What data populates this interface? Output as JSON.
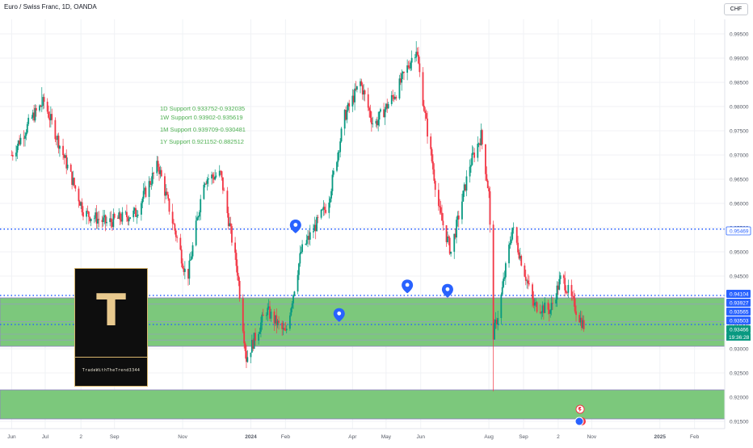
{
  "header": {
    "symbol_title": "Euro / Swiss Franc, 1D, OANDA",
    "currency_label": "CHF"
  },
  "logo": {
    "letter": "T",
    "caption": "TradeWithTheTrend3344"
  },
  "annotations": [
    "1D Support 0.933752-0.932035",
    "1W Support 0.93902-0.935619",
    "1M Support 0.939709-0.930481",
    "1Y Support 0.921152-0.882512"
  ],
  "colors": {
    "up": "#089981",
    "down": "#f23645",
    "zone": "#7cc87c",
    "level_line": "#2962ff",
    "annotation": "#4caf50",
    "axis_text": "#555a65",
    "label_blue": "#2962ff",
    "label_green": "#089981"
  },
  "chart_data": {
    "type": "candlestick",
    "title": "Euro / Swiss Franc, 1D, OANDA",
    "ylim": [
      0.9135,
      0.998
    ],
    "y_ticks": [
      "0.99500",
      "0.99000",
      "0.98500",
      "0.98000",
      "0.97500",
      "0.97000",
      "0.96500",
      "0.96000",
      "0.95500",
      "0.95000",
      "0.94500",
      "0.94000",
      "0.93500",
      "0.93000",
      "0.92500",
      "0.92000",
      "0.91500"
    ],
    "x_tick_labels": [
      {
        "label": "Jun",
        "date": "2023-06-01"
      },
      {
        "label": "Jul",
        "date": "2023-07-01"
      },
      {
        "label": "2",
        "date": "2023-08-02"
      },
      {
        "label": "Sep",
        "date": "2023-09-01"
      },
      {
        "label": "Nov",
        "date": "2023-11-01"
      },
      {
        "label": "2024",
        "date": "2024-01-01"
      },
      {
        "label": "Feb",
        "date": "2024-02-01"
      },
      {
        "label": "Apr",
        "date": "2024-04-01"
      },
      {
        "label": "May",
        "date": "2024-05-01"
      },
      {
        "label": "Jun",
        "date": "2024-06-01"
      },
      {
        "label": "Aug",
        "date": "2024-08-01"
      },
      {
        "label": "Sep",
        "date": "2024-09-01"
      },
      {
        "label": "2",
        "date": "2024-10-02"
      },
      {
        "label": "Nov",
        "date": "2024-11-01"
      },
      {
        "label": "2025",
        "date": "2025-01-01"
      },
      {
        "label": "Feb",
        "date": "2025-02-01"
      }
    ],
    "price_path": [
      {
        "date": "2023-06-01",
        "price": 0.97
      },
      {
        "date": "2023-06-20",
        "price": 0.978
      },
      {
        "date": "2023-06-30",
        "price": 0.981
      },
      {
        "date": "2023-07-25",
        "price": 0.965
      },
      {
        "date": "2023-08-05",
        "price": 0.958
      },
      {
        "date": "2023-08-25",
        "price": 0.956
      },
      {
        "date": "2023-09-20",
        "price": 0.958
      },
      {
        "date": "2023-10-10",
        "price": 0.968
      },
      {
        "date": "2023-10-30",
        "price": 0.95
      },
      {
        "date": "2023-11-05",
        "price": 0.944
      },
      {
        "date": "2023-11-20",
        "price": 0.965
      },
      {
        "date": "2023-12-05",
        "price": 0.966
      },
      {
        "date": "2023-12-20",
        "price": 0.946
      },
      {
        "date": "2023-12-28",
        "price": 0.928
      },
      {
        "date": "2024-01-15",
        "price": 0.938
      },
      {
        "date": "2024-02-01",
        "price": 0.933
      },
      {
        "date": "2024-02-15",
        "price": 0.95
      },
      {
        "date": "2024-03-10",
        "price": 0.96
      },
      {
        "date": "2024-03-25",
        "price": 0.978
      },
      {
        "date": "2024-04-08",
        "price": 0.985
      },
      {
        "date": "2024-04-20",
        "price": 0.976
      },
      {
        "date": "2024-05-10",
        "price": 0.983
      },
      {
        "date": "2024-05-28",
        "price": 0.992
      },
      {
        "date": "2024-06-05",
        "price": 0.978
      },
      {
        "date": "2024-06-18",
        "price": 0.958
      },
      {
        "date": "2024-06-28",
        "price": 0.95
      },
      {
        "date": "2024-07-15",
        "price": 0.968
      },
      {
        "date": "2024-07-25",
        "price": 0.974
      },
      {
        "date": "2024-08-01",
        "price": 0.962
      },
      {
        "date": "2024-08-05",
        "price": 0.933
      },
      {
        "date": "2024-08-10",
        "price": 0.938
      },
      {
        "date": "2024-08-22",
        "price": 0.955
      },
      {
        "date": "2024-09-10",
        "price": 0.939
      },
      {
        "date": "2024-09-25",
        "price": 0.938
      },
      {
        "date": "2024-10-05",
        "price": 0.945
      },
      {
        "date": "2024-10-20",
        "price": 0.937
      },
      {
        "date": "2024-10-25",
        "price": 0.9347
      }
    ],
    "wick_extremes": [
      {
        "date": "2023-06-28",
        "high": 0.984
      },
      {
        "date": "2023-12-28",
        "low": 0.926
      },
      {
        "date": "2024-04-20",
        "low": 0.957
      },
      {
        "date": "2024-05-28",
        "high": 0.9935
      },
      {
        "date": "2024-08-05",
        "low": 0.9212
      }
    ],
    "support_zones": [
      {
        "from": 0.9305,
        "to": 0.9405
      },
      {
        "from": 0.9155,
        "to": 0.9215
      }
    ],
    "horizontal_levels": [
      0.9547,
      0.941,
      0.935
    ],
    "markers": [
      {
        "date": "2024-02-10",
        "price": 0.9545
      },
      {
        "date": "2024-05-20",
        "price": 0.9421
      },
      {
        "date": "2024-06-25",
        "price": 0.9412
      },
      {
        "date": "2024-03-20",
        "price": 0.9362
      }
    ],
    "price_labels": [
      {
        "text": "0.95469",
        "value": 0.95469,
        "style": "outline-blue"
      },
      {
        "text": "0.94104",
        "value": 0.94104,
        "style": "fill-blue"
      },
      {
        "text": "0.93927",
        "value": 0.93927,
        "style": "fill-blue"
      },
      {
        "text": "0.93565",
        "value": 0.93565,
        "style": "fill-blue"
      },
      {
        "text": "0.93503",
        "value": 0.93503,
        "style": "fill-blue"
      },
      {
        "text": "0.93466",
        "value": 0.93466,
        "style": "fill-green"
      }
    ],
    "countdown": "19:36:28"
  }
}
